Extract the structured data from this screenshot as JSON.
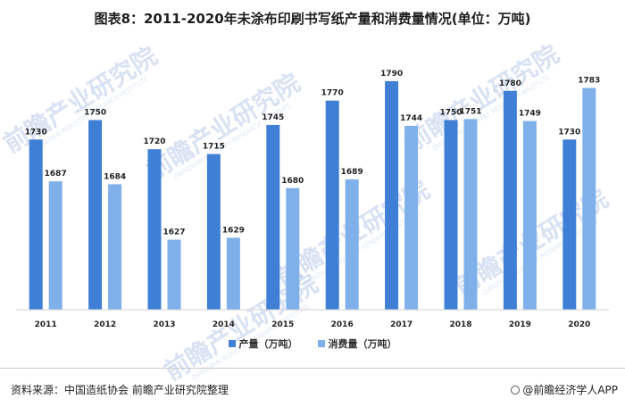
{
  "chart_data": {
    "type": "bar",
    "title": "图表8：2011-2020年未涂布印刷书写纸产量和消费量情况(单位：万吨)",
    "categories": [
      "2011",
      "2012",
      "2013",
      "2014",
      "2015",
      "2016",
      "2017",
      "2018",
      "2019",
      "2020"
    ],
    "series": [
      {
        "name": "产量（万吨）",
        "color": "#3f7fd6",
        "values": [
          1730,
          1750,
          1720,
          1715,
          1745,
          1770,
          1790,
          1750,
          1780,
          1730
        ]
      },
      {
        "name": "消费量（万吨）",
        "color": "#7fb0ea",
        "values": [
          1687,
          1684,
          1627,
          1629,
          1680,
          1689,
          1744,
          1751,
          1749,
          1783
        ]
      }
    ],
    "ylim": [
      1555,
      1800
    ],
    "grid": false,
    "legend_position": "bottom-center"
  },
  "footer": {
    "source": "资料来源：中国造纸协会 前瞻产业研究院整理",
    "brand": "@前瞻经济学人APP"
  },
  "watermark": {
    "line1": "前瞻产业研究院",
    "line2": "QIANZHAN INDUSTRY RESEARCH INSTITUTE"
  }
}
